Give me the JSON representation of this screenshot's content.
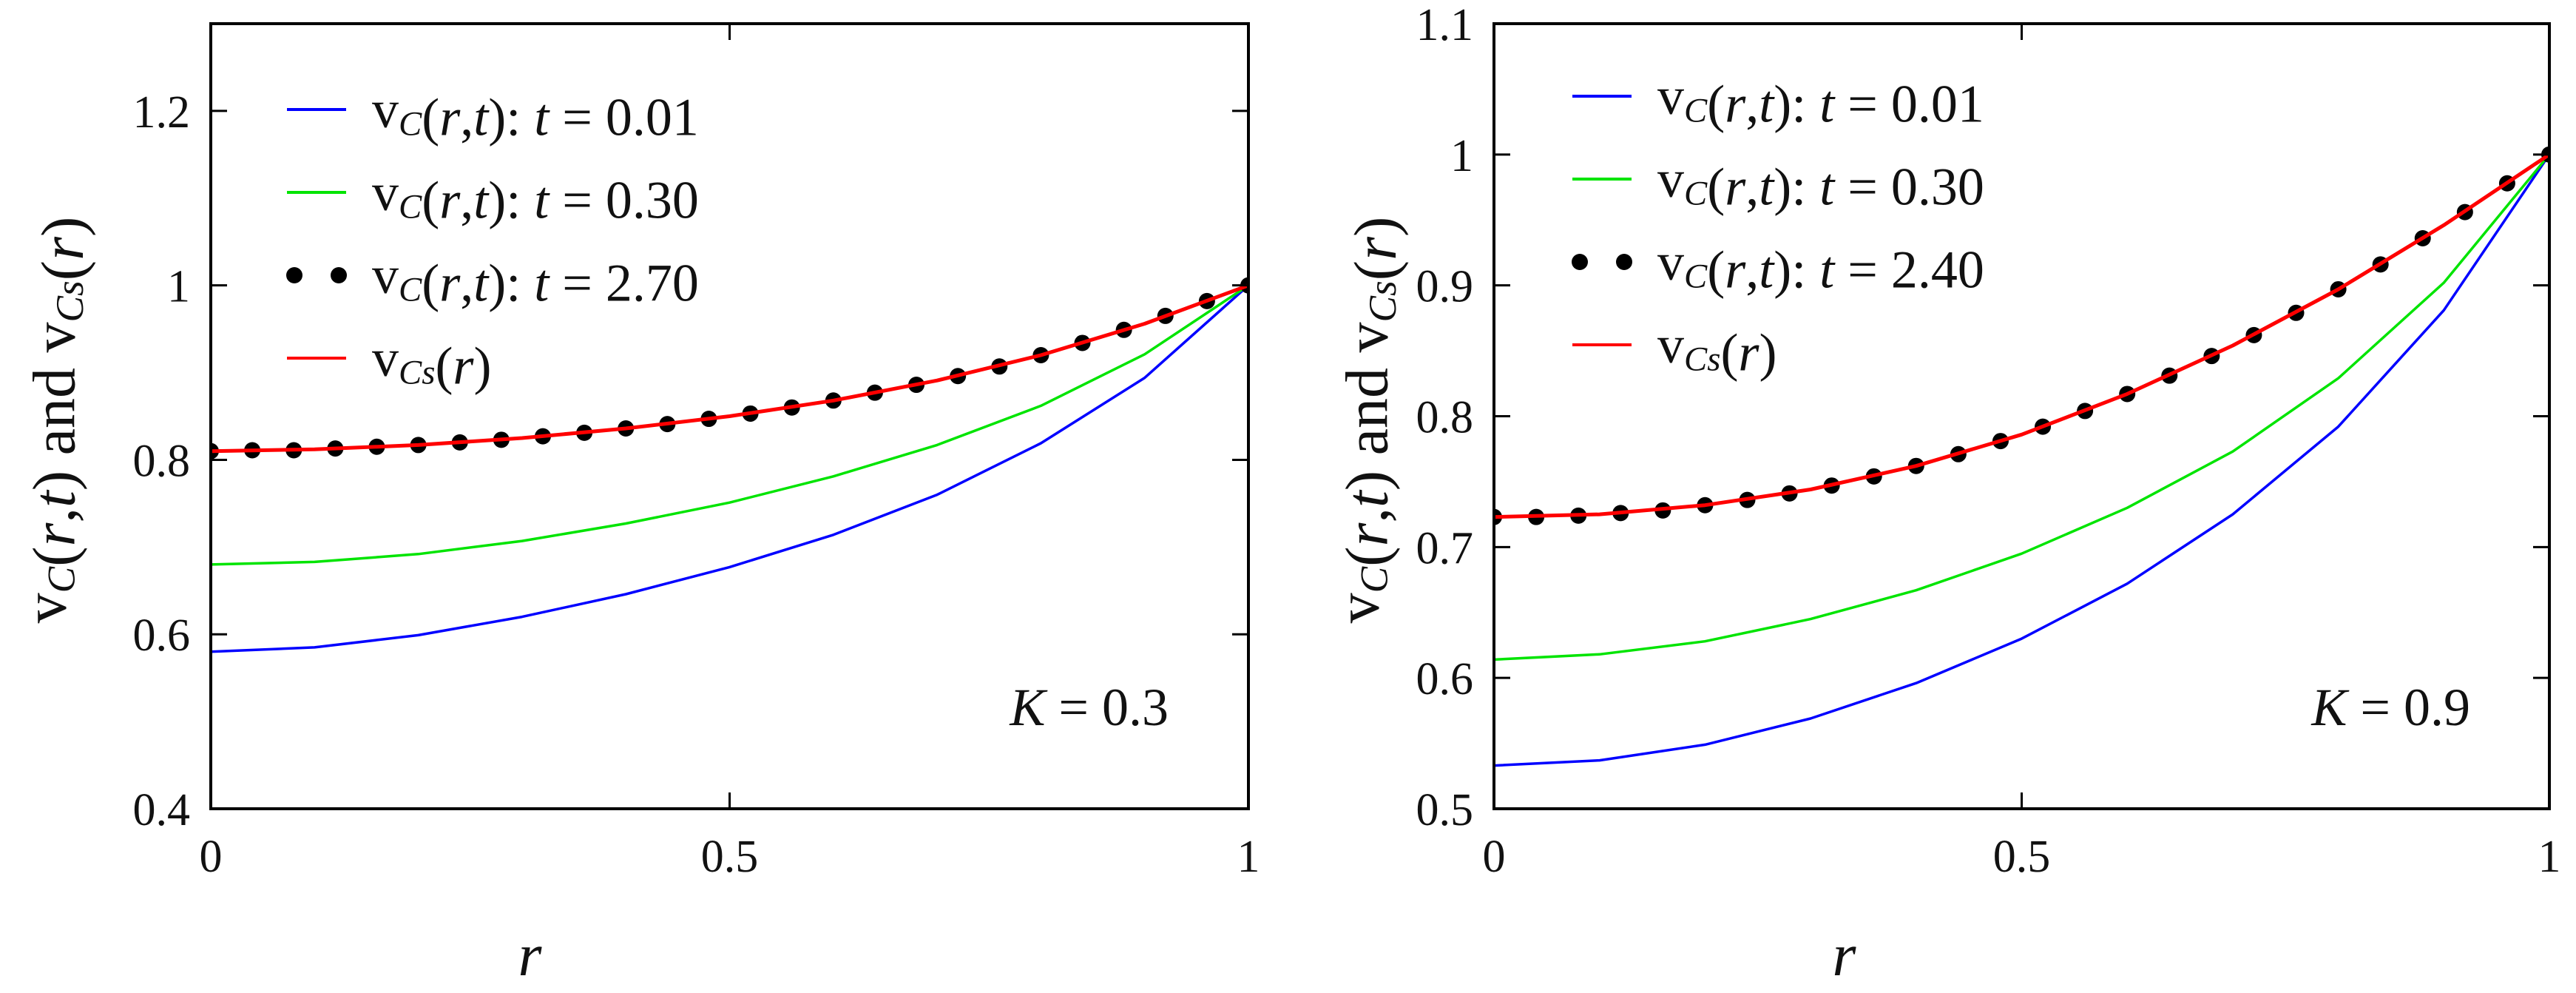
{
  "colors": {
    "blue": "#0000ff",
    "green": "#00e400",
    "red": "#ff0000",
    "dots": "#000000",
    "axis": "#000000"
  },
  "chart_data": [
    {
      "type": "line",
      "x_name": "r",
      "xlabel": "r",
      "ylabel": "vC(r,t) and vCs(r)",
      "xlim": [
        0,
        1
      ],
      "ylim": [
        0.4,
        1.3
      ],
      "xticks": [
        0,
        0.5,
        1
      ],
      "xtick_labels": [
        "0",
        "0.5",
        "1"
      ],
      "yticks": [
        0.4,
        0.6,
        0.8,
        1,
        1.2
      ],
      "ytick_labels": [
        "0.4",
        "0.6",
        "0.8",
        "1",
        "1.2"
      ],
      "grid": false,
      "legend_position": "top-left",
      "annotation": "K = 0.3",
      "series": [
        {
          "name": "vC(r,t): t = 0.01",
          "legend_label": "vC(r,t): t = 0.01",
          "color": "blue",
          "style": "line",
          "x": [
            0,
            0.1,
            0.2,
            0.3,
            0.4,
            0.5,
            0.6,
            0.7,
            0.8,
            0.9,
            1.0
          ],
          "y": [
            0.58,
            0.585,
            0.599,
            0.62,
            0.646,
            0.677,
            0.714,
            0.76,
            0.819,
            0.894,
            1.0
          ]
        },
        {
          "name": "vC(r,t): t = 0.30",
          "legend_label": "vC(r,t): t = 0.30",
          "color": "green",
          "style": "line",
          "x": [
            0,
            0.1,
            0.2,
            0.3,
            0.4,
            0.5,
            0.6,
            0.7,
            0.8,
            0.9,
            1.0
          ],
          "y": [
            0.68,
            0.683,
            0.692,
            0.707,
            0.727,
            0.751,
            0.781,
            0.817,
            0.862,
            0.921,
            1.0
          ]
        },
        {
          "name": "vC(r,t): t = 2.70",
          "legend_label": "vC(r,t): t = 2.70",
          "color": "dots",
          "style": "markers",
          "x": [
            0,
            0.04,
            0.08,
            0.12,
            0.16,
            0.2,
            0.24,
            0.28,
            0.32,
            0.36,
            0.4,
            0.44,
            0.48,
            0.52,
            0.56,
            0.6,
            0.64,
            0.68,
            0.72,
            0.76,
            0.8,
            0.84,
            0.88,
            0.92,
            0.96,
            1.0
          ],
          "y": [
            0.81,
            0.811,
            0.811,
            0.813,
            0.815,
            0.817,
            0.82,
            0.823,
            0.827,
            0.831,
            0.836,
            0.841,
            0.847,
            0.853,
            0.86,
            0.868,
            0.877,
            0.886,
            0.896,
            0.907,
            0.92,
            0.934,
            0.949,
            0.965,
            0.982,
            1.0
          ]
        },
        {
          "name": "vCs(r)",
          "legend_label": "vCs(r)",
          "color": "red",
          "style": "line",
          "x": [
            0,
            0.1,
            0.2,
            0.3,
            0.4,
            0.5,
            0.6,
            0.7,
            0.8,
            0.9,
            1.0
          ],
          "y": [
            0.81,
            0.812,
            0.817,
            0.825,
            0.836,
            0.85,
            0.868,
            0.891,
            0.92,
            0.956,
            1.0
          ]
        }
      ]
    },
    {
      "type": "line",
      "x_name": "r",
      "xlabel": "r",
      "ylabel": "vC(r,t) and vCs(r)",
      "xlim": [
        0,
        1
      ],
      "ylim": [
        0.5,
        1.1
      ],
      "xticks": [
        0,
        0.5,
        1
      ],
      "xtick_labels": [
        "0",
        "0.5",
        "1"
      ],
      "yticks": [
        0.5,
        0.6,
        0.7,
        0.8,
        0.9,
        1,
        1.1
      ],
      "ytick_labels": [
        "0.5",
        "0.6",
        "0.7",
        "0.8",
        "0.9",
        "1",
        "1.1"
      ],
      "grid": false,
      "legend_position": "top-left",
      "annotation": "K = 0.9",
      "series": [
        {
          "name": "vC(r,t): t = 0.01",
          "legend_label": "vC(r,t): t = 0.01",
          "color": "blue",
          "style": "line",
          "x": [
            0,
            0.1,
            0.2,
            0.3,
            0.4,
            0.5,
            0.6,
            0.7,
            0.8,
            0.9,
            1.0
          ],
          "y": [
            0.533,
            0.537,
            0.549,
            0.569,
            0.596,
            0.63,
            0.672,
            0.725,
            0.792,
            0.881,
            1.0
          ]
        },
        {
          "name": "vC(r,t): t = 0.30",
          "legend_label": "vC(r,t): t = 0.30",
          "color": "green",
          "style": "line",
          "x": [
            0,
            0.1,
            0.2,
            0.3,
            0.4,
            0.5,
            0.6,
            0.7,
            0.8,
            0.9,
            1.0
          ],
          "y": [
            0.614,
            0.618,
            0.628,
            0.645,
            0.667,
            0.695,
            0.73,
            0.773,
            0.829,
            0.902,
            1.0
          ]
        },
        {
          "name": "vC(r,t): t = 2.40",
          "legend_label": "vC(r,t): t = 2.40",
          "color": "dots",
          "style": "markers",
          "x": [
            0,
            0.04,
            0.08,
            0.12,
            0.16,
            0.2,
            0.24,
            0.28,
            0.32,
            0.36,
            0.4,
            0.44,
            0.48,
            0.52,
            0.56,
            0.6,
            0.64,
            0.68,
            0.72,
            0.76,
            0.8,
            0.84,
            0.88,
            0.92,
            0.96,
            1.0
          ],
          "y": [
            0.723,
            0.723,
            0.724,
            0.726,
            0.728,
            0.732,
            0.736,
            0.741,
            0.747,
            0.754,
            0.762,
            0.771,
            0.781,
            0.792,
            0.804,
            0.817,
            0.831,
            0.846,
            0.862,
            0.879,
            0.897,
            0.916,
            0.936,
            0.956,
            0.978,
            1.0
          ]
        },
        {
          "name": "vCs(r)",
          "legend_label": "vCs(r)",
          "color": "red",
          "style": "line",
          "x": [
            0,
            0.1,
            0.2,
            0.3,
            0.4,
            0.5,
            0.6,
            0.7,
            0.8,
            0.9,
            1.0
          ],
          "y": [
            0.723,
            0.725,
            0.732,
            0.744,
            0.762,
            0.786,
            0.817,
            0.854,
            0.897,
            0.946,
            1.0
          ]
        }
      ]
    }
  ]
}
